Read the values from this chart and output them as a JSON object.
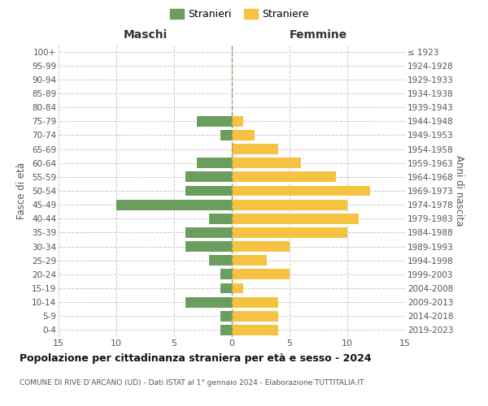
{
  "age_groups": [
    "0-4",
    "5-9",
    "10-14",
    "15-19",
    "20-24",
    "25-29",
    "30-34",
    "35-39",
    "40-44",
    "45-49",
    "50-54",
    "55-59",
    "60-64",
    "65-69",
    "70-74",
    "75-79",
    "80-84",
    "85-89",
    "90-94",
    "95-99",
    "100+"
  ],
  "birth_years": [
    "2019-2023",
    "2014-2018",
    "2009-2013",
    "2004-2008",
    "1999-2003",
    "1994-1998",
    "1989-1993",
    "1984-1988",
    "1979-1983",
    "1974-1978",
    "1969-1973",
    "1964-1968",
    "1959-1963",
    "1954-1958",
    "1949-1953",
    "1944-1948",
    "1939-1943",
    "1934-1938",
    "1929-1933",
    "1924-1928",
    "≤ 1923"
  ],
  "males": [
    1,
    1,
    4,
    1,
    1,
    2,
    4,
    4,
    2,
    10,
    4,
    4,
    3,
    0,
    1,
    3,
    0,
    0,
    0,
    0,
    0
  ],
  "females": [
    4,
    4,
    4,
    1,
    5,
    3,
    5,
    10,
    11,
    10,
    12,
    9,
    6,
    4,
    2,
    1,
    0,
    0,
    0,
    0,
    0
  ],
  "male_color": "#6a9e5e",
  "female_color": "#f5c242",
  "background_color": "#ffffff",
  "grid_color": "#cccccc",
  "center_line_color": "#999966",
  "title": "Popolazione per cittadinanza straniera per età e sesso - 2024",
  "subtitle": "COMUNE DI RIVE D’ARCANO (UD) - Dati ISTAT al 1° gennaio 2024 - Elaborazione TUTTITALIA.IT",
  "ylabel_left": "Fasce di età",
  "ylabel_right": "Anni di nascita",
  "xlabel_maschi": "Maschi",
  "xlabel_femmine": "Femmine",
  "legend_stranieri": "Stranieri",
  "legend_straniere": "Straniere",
  "xlim": 15
}
